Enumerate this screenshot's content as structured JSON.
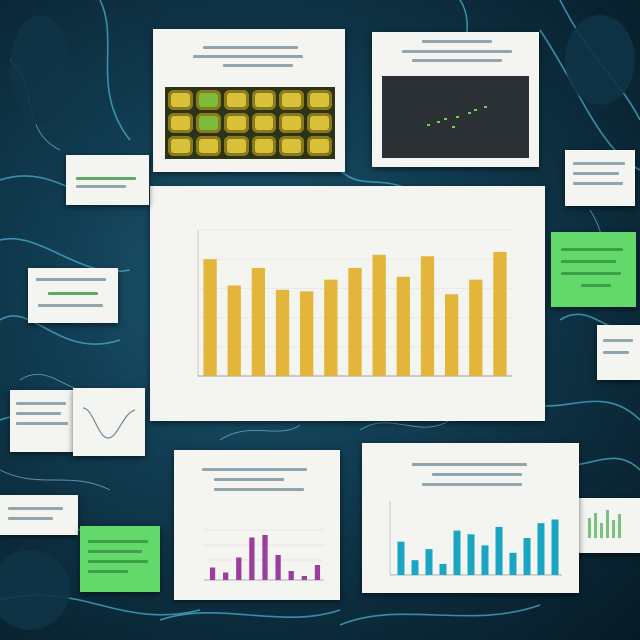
{
  "scene": {
    "description_hidden": "",
    "colors": {
      "background_dark": "#0b2a3a",
      "background_mid": "#1d5a73",
      "vein": "#4fb6d6",
      "bar_gold": "#e3b53a",
      "bar_teal": "#19a6c2",
      "bar_purple": "#9a3d9c",
      "note_green": "#63d96b"
    }
  },
  "main_chart": {
    "title": "",
    "xlabel": "",
    "ylabel": ""
  },
  "chart_data": [
    {
      "type": "bar",
      "title": "",
      "xlabel": "",
      "ylabel": "",
      "categories": [
        "",
        "",
        "",
        "",
        "",
        "",
        "",
        "",
        "",
        "",
        "",
        "",
        ""
      ],
      "values": [
        0.8,
        0.62,
        0.74,
        0.59,
        0.58,
        0.66,
        0.74,
        0.83,
        0.68,
        0.82,
        0.56,
        0.66,
        0.85
      ],
      "ylim": [
        0,
        1
      ],
      "grid": true
    },
    {
      "type": "bar",
      "title": "",
      "categories": [
        "",
        "",
        "",
        "",
        "",
        "",
        "",
        "",
        "",
        "",
        "",
        ""
      ],
      "values": [
        0.45,
        0.2,
        0.35,
        0.15,
        0.6,
        0.55,
        0.4,
        0.65,
        0.3,
        0.5,
        0.7,
        0.75
      ],
      "ylim": [
        0,
        1
      ]
    },
    {
      "type": "bar",
      "title": "",
      "categories": [
        "",
        "",
        "",
        "",
        "",
        "",
        "",
        "",
        ""
      ],
      "values": [
        0.25,
        0.15,
        0.45,
        0.85,
        0.9,
        0.5,
        0.18,
        0.08,
        0.3
      ],
      "ylim": [
        0,
        1
      ]
    }
  ]
}
